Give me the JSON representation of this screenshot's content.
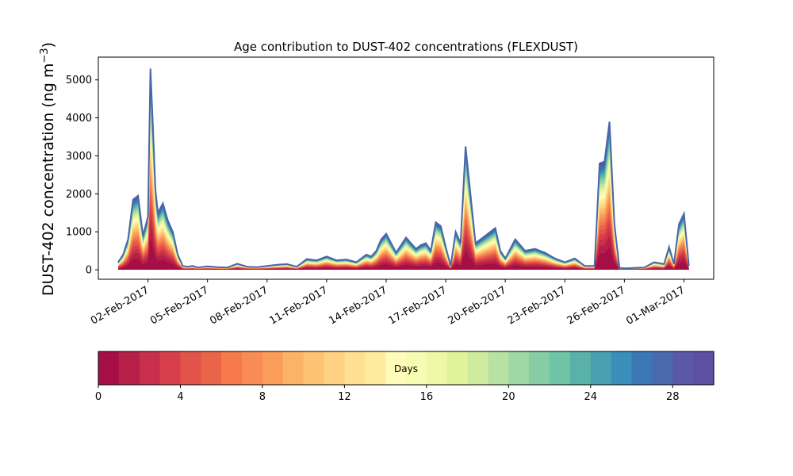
{
  "chart_data": {
    "type": "area",
    "title": "Age contribution to DUST-402 concentrations (FLEXDUST)",
    "xlabel": "",
    "ylabel": "DUST-402 concentration (ng m",
    "ylabel_sup": "−3",
    "ylabel_close": ")",
    "ylim": [
      -250,
      5600
    ],
    "xlim": [
      "2017-01-30T12:00",
      "2017-03-02T12:00"
    ],
    "yticks": [
      0,
      1000,
      2000,
      3000,
      4000,
      5000
    ],
    "xticks": [
      "2017-02-02",
      "2017-02-05",
      "2017-02-08",
      "2017-02-11",
      "2017-02-14",
      "2017-02-17",
      "2017-02-20",
      "2017-02-23",
      "2017-02-26",
      "2017-03-01"
    ],
    "xtick_labels": [
      "02-Feb-2017",
      "05-Feb-2017",
      "08-Feb-2017",
      "11-Feb-2017",
      "14-Feb-2017",
      "17-Feb-2017",
      "20-Feb-2017",
      "23-Feb-2017",
      "26-Feb-2017",
      "01-Mar-2017"
    ],
    "grid": false,
    "stacking": "cumulative by age (days 0–30)",
    "total_line_color": "#4a66a8",
    "total": {
      "dates": [
        "2017-01-31T12:00",
        "2017-01-31T18:00",
        "2017-02-01T00:00",
        "2017-02-01T06:00",
        "2017-02-01T12:00",
        "2017-02-01T18:00",
        "2017-02-02T00:00",
        "2017-02-02T03:00",
        "2017-02-02T06:00",
        "2017-02-02T09:00",
        "2017-02-02T12:00",
        "2017-02-02T18:00",
        "2017-02-03T00:00",
        "2017-02-03T06:00",
        "2017-02-03T12:00",
        "2017-02-03T18:00",
        "2017-02-04T00:00",
        "2017-02-04T06:00",
        "2017-02-04T12:00",
        "2017-02-05T00:00",
        "2017-02-05T12:00",
        "2017-02-06T00:00",
        "2017-02-06T12:00",
        "2017-02-07T00:00",
        "2017-02-07T12:00",
        "2017-02-08T00:00",
        "2017-02-08T12:00",
        "2017-02-09T00:00",
        "2017-02-09T12:00",
        "2017-02-10T00:00",
        "2017-02-10T12:00",
        "2017-02-11T00:00",
        "2017-02-11T12:00",
        "2017-02-12T00:00",
        "2017-02-12T12:00",
        "2017-02-13T00:00",
        "2017-02-13T06:00",
        "2017-02-13T12:00",
        "2017-02-13T18:00",
        "2017-02-14T00:00",
        "2017-02-14T12:00",
        "2017-02-15T00:00",
        "2017-02-15T12:00",
        "2017-02-15T18:00",
        "2017-02-16T00:00",
        "2017-02-16T06:00",
        "2017-02-16T12:00",
        "2017-02-16T18:00",
        "2017-02-17T00:00",
        "2017-02-17T06:00",
        "2017-02-17T12:00",
        "2017-02-17T18:00",
        "2017-02-18T00:00",
        "2017-02-18T12:00",
        "2017-02-19T00:00",
        "2017-02-19T12:00",
        "2017-02-19T18:00",
        "2017-02-20T00:00",
        "2017-02-20T12:00",
        "2017-02-21T00:00",
        "2017-02-21T12:00",
        "2017-02-22T00:00",
        "2017-02-22T12:00",
        "2017-02-23T00:00",
        "2017-02-23T12:00",
        "2017-02-24T00:00",
        "2017-02-24T12:00",
        "2017-02-24T18:00",
        "2017-02-25T00:00",
        "2017-02-25T06:00",
        "2017-02-25T12:00",
        "2017-02-25T18:00",
        "2017-02-26T00:00",
        "2017-02-26T06:00",
        "2017-02-26T12:00",
        "2017-02-27T00:00",
        "2017-02-27T12:00",
        "2017-02-28T00:00",
        "2017-02-28T06:00",
        "2017-02-28T12:00",
        "2017-02-28T18:00",
        "2017-03-01T00:00",
        "2017-03-01T06:00"
      ],
      "values": [
        200,
        400,
        800,
        1850,
        1950,
        900,
        1400,
        5300,
        3800,
        2100,
        1500,
        1750,
        1300,
        1000,
        400,
        100,
        80,
        100,
        60,
        90,
        70,
        60,
        160,
        80,
        70,
        100,
        130,
        150,
        80,
        280,
        250,
        350,
        250,
        270,
        200,
        400,
        350,
        500,
        800,
        950,
        450,
        850,
        550,
        650,
        700,
        500,
        1250,
        1150,
        600,
        100,
        1000,
        700,
        3250,
        700,
        900,
        1100,
        500,
        300,
        800,
        500,
        550,
        450,
        300,
        200,
        300,
        100,
        100,
        2800,
        2850,
        3900,
        1200,
        50,
        40,
        40,
        50,
        60,
        200,
        150,
        600,
        150,
        1200,
        1480,
        100
      ]
    },
    "colorbar": {
      "label": "Days",
      "min": 0,
      "max": 30,
      "levels": 30,
      "ticks": [
        0,
        4,
        8,
        12,
        16,
        20,
        24,
        28
      ],
      "colormap": "Spectral",
      "colors": [
        "#a50f45",
        "#b61f48",
        "#c72f4a",
        "#d73f4a",
        "#e2544a",
        "#ea6449",
        "#f67a4b",
        "#f88c54",
        "#fb9d5a",
        "#fdb365",
        "#fdc373",
        "#fed282",
        "#fee090",
        "#ffeb9e",
        "#fffbb8",
        "#f8fbb2",
        "#eef8a6",
        "#e2f29a",
        "#cfeb9d",
        "#b8e2a1",
        "#9ed8a3",
        "#86cda5",
        "#6fc4a5",
        "#59b1a9",
        "#4aa0b1",
        "#3a8fba",
        "#3978b5",
        "#4a6aad",
        "#5a58a7",
        "#5e4fa2"
      ]
    }
  }
}
